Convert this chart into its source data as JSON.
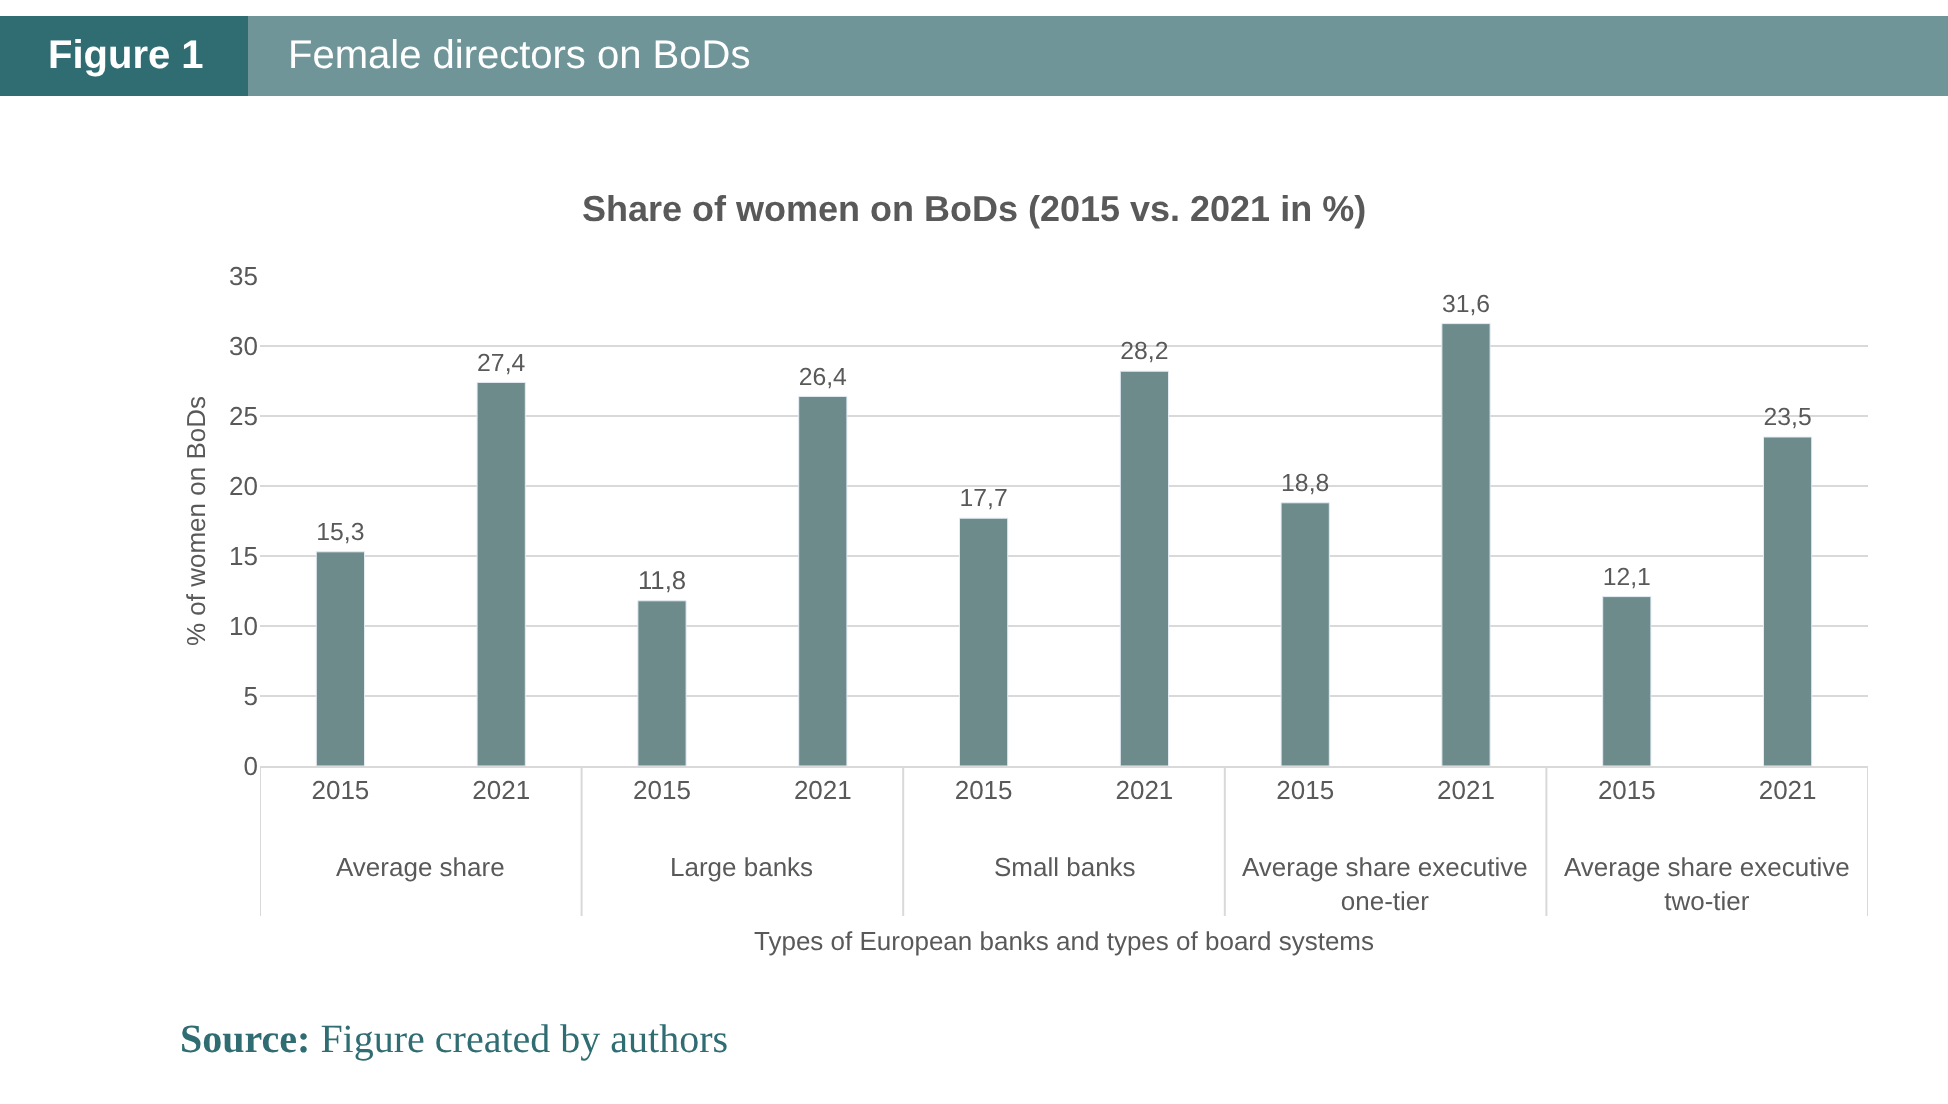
{
  "chart_data": {
    "type": "bar",
    "title": "Share of women on BoDs (2015 vs. 2021 in %)",
    "xlabel": "Types of European banks and types of board systems",
    "ylabel": "% of women on BoDs",
    "categories": [
      "2015",
      "2021",
      "2015",
      "2021",
      "2015",
      "2021",
      "2015",
      "2021",
      "2015",
      "2021"
    ],
    "values": [
      15.3,
      27.4,
      11.8,
      26.4,
      17.7,
      28.2,
      18.8,
      31.6,
      12.1,
      23.5
    ],
    "value_labels": [
      "15,3",
      "27,4",
      "11,8",
      "26,4",
      "17,7",
      "28,2",
      "18,8",
      "31,6",
      "12,1",
      "23,5"
    ],
    "color": "#6e8b8c",
    "ylim": [
      0,
      35
    ],
    "yticks": [
      0,
      5,
      10,
      15,
      20,
      25,
      30,
      35
    ],
    "grid": "y",
    "legend": false,
    "annotations": [
      "Figure 1",
      "Female directors on BoDs",
      "Average share",
      "Large banks",
      "Small banks",
      "Average share executive one-tier",
      "Average share executive two-tier",
      "Source: Figure created by authors"
    ]
  }
}
